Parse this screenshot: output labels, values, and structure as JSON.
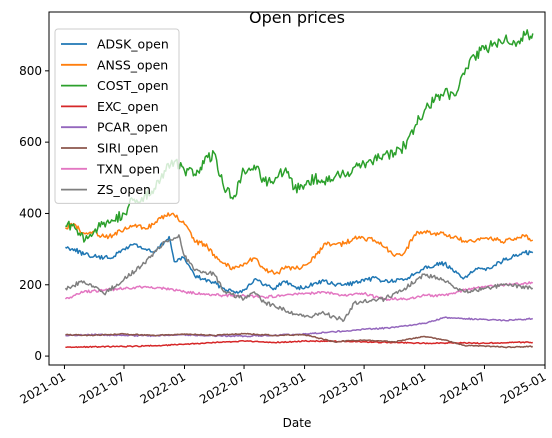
{
  "chart_data": {
    "type": "line",
    "title": "Open prices",
    "xlabel": "Date",
    "ylabel": "",
    "xlim": [
      "2020-11-15",
      "2025-01-01"
    ],
    "ylim": [
      -25,
      965
    ],
    "x_ticks": [
      "2021-01",
      "2021-07",
      "2022-01",
      "2022-07",
      "2023-01",
      "2023-07",
      "2024-01",
      "2024-07",
      "2025-01"
    ],
    "y_ticks": [
      0,
      200,
      400,
      600,
      800
    ],
    "grid": false,
    "legend_position": "top-left",
    "series": [
      {
        "name": "ADSK_open",
        "color": "#1f77b4",
        "points": [
          [
            "2021-01-04",
            305
          ],
          [
            "2021-02-01",
            300
          ],
          [
            "2021-03-01",
            285
          ],
          [
            "2021-04-01",
            280
          ],
          [
            "2021-05-01",
            275
          ],
          [
            "2021-06-01",
            280
          ],
          [
            "2021-07-01",
            300
          ],
          [
            "2021-08-01",
            315
          ],
          [
            "2021-09-01",
            300
          ],
          [
            "2021-10-01",
            290
          ],
          [
            "2021-11-01",
            320
          ],
          [
            "2021-11-15",
            335
          ],
          [
            "2021-12-01",
            265
          ],
          [
            "2022-01-01",
            275
          ],
          [
            "2022-02-01",
            225
          ],
          [
            "2022-03-01",
            215
          ],
          [
            "2022-04-01",
            205
          ],
          [
            "2022-05-01",
            190
          ],
          [
            "2022-06-01",
            180
          ],
          [
            "2022-07-01",
            185
          ],
          [
            "2022-08-01",
            215
          ],
          [
            "2022-09-01",
            200
          ],
          [
            "2022-10-01",
            190
          ],
          [
            "2022-11-01",
            210
          ],
          [
            "2022-12-01",
            195
          ],
          [
            "2023-01-01",
            190
          ],
          [
            "2023-02-01",
            205
          ],
          [
            "2023-03-01",
            210
          ],
          [
            "2023-04-01",
            200
          ],
          [
            "2023-05-01",
            200
          ],
          [
            "2023-06-01",
            205
          ],
          [
            "2023-07-01",
            210
          ],
          [
            "2023-08-01",
            220
          ],
          [
            "2023-09-01",
            210
          ],
          [
            "2023-10-01",
            210
          ],
          [
            "2023-11-01",
            215
          ],
          [
            "2023-12-01",
            230
          ],
          [
            "2024-01-01",
            250
          ],
          [
            "2024-02-01",
            255
          ],
          [
            "2024-03-01",
            260
          ],
          [
            "2024-04-01",
            235
          ],
          [
            "2024-05-01",
            220
          ],
          [
            "2024-06-01",
            240
          ],
          [
            "2024-07-01",
            245
          ],
          [
            "2024-08-01",
            255
          ],
          [
            "2024-09-01",
            270
          ],
          [
            "2024-10-01",
            280
          ],
          [
            "2024-11-01",
            290
          ],
          [
            "2024-11-25",
            290
          ]
        ]
      },
      {
        "name": "ANSS_open",
        "color": "#ff7f0e",
        "points": [
          [
            "2021-01-04",
            360
          ],
          [
            "2021-02-01",
            370
          ],
          [
            "2021-03-01",
            345
          ],
          [
            "2021-04-01",
            350
          ],
          [
            "2021-05-01",
            335
          ],
          [
            "2021-06-01",
            340
          ],
          [
            "2021-07-01",
            355
          ],
          [
            "2021-08-01",
            365
          ],
          [
            "2021-09-01",
            360
          ],
          [
            "2021-10-01",
            370
          ],
          [
            "2021-11-01",
            395
          ],
          [
            "2021-12-01",
            395
          ],
          [
            "2022-01-01",
            370
          ],
          [
            "2022-02-01",
            320
          ],
          [
            "2022-03-01",
            315
          ],
          [
            "2022-04-01",
            285
          ],
          [
            "2022-05-01",
            260
          ],
          [
            "2022-06-01",
            245
          ],
          [
            "2022-07-01",
            260
          ],
          [
            "2022-08-01",
            275
          ],
          [
            "2022-09-01",
            245
          ],
          [
            "2022-10-01",
            230
          ],
          [
            "2022-11-01",
            245
          ],
          [
            "2022-12-01",
            245
          ],
          [
            "2023-01-01",
            255
          ],
          [
            "2023-02-01",
            275
          ],
          [
            "2023-03-01",
            315
          ],
          [
            "2023-04-01",
            315
          ],
          [
            "2023-05-01",
            315
          ],
          [
            "2023-06-01",
            330
          ],
          [
            "2023-07-01",
            330
          ],
          [
            "2023-08-01",
            325
          ],
          [
            "2023-09-01",
            305
          ],
          [
            "2023-10-01",
            280
          ],
          [
            "2023-11-01",
            290
          ],
          [
            "2023-12-01",
            340
          ],
          [
            "2024-01-01",
            350
          ],
          [
            "2024-02-01",
            345
          ],
          [
            "2024-03-01",
            340
          ],
          [
            "2024-04-01",
            335
          ],
          [
            "2024-05-01",
            320
          ],
          [
            "2024-06-01",
            320
          ],
          [
            "2024-07-01",
            330
          ],
          [
            "2024-08-01",
            330
          ],
          [
            "2024-09-01",
            320
          ],
          [
            "2024-10-01",
            330
          ],
          [
            "2024-11-01",
            335
          ],
          [
            "2024-11-25",
            325
          ]
        ]
      },
      {
        "name": "COST_open",
        "color": "#2ca02c",
        "points": [
          [
            "2021-01-04",
            365
          ],
          [
            "2021-02-01",
            360
          ],
          [
            "2021-03-01",
            320
          ],
          [
            "2021-04-01",
            350
          ],
          [
            "2021-05-01",
            375
          ],
          [
            "2021-06-01",
            380
          ],
          [
            "2021-07-01",
            400
          ],
          [
            "2021-08-01",
            440
          ],
          [
            "2021-09-01",
            450
          ],
          [
            "2021-10-01",
            470
          ],
          [
            "2021-11-01",
            520
          ],
          [
            "2021-12-01",
            545
          ],
          [
            "2022-01-01",
            520
          ],
          [
            "2022-02-01",
            510
          ],
          [
            "2022-03-01",
            540
          ],
          [
            "2022-04-01",
            570
          ],
          [
            "2022-05-01",
            470
          ],
          [
            "2022-06-01",
            450
          ],
          [
            "2022-07-01",
            520
          ],
          [
            "2022-08-01",
            535
          ],
          [
            "2022-09-01",
            490
          ],
          [
            "2022-10-01",
            490
          ],
          [
            "2022-11-01",
            520
          ],
          [
            "2022-12-01",
            470
          ],
          [
            "2023-01-01",
            480
          ],
          [
            "2023-02-01",
            500
          ],
          [
            "2023-03-01",
            490
          ],
          [
            "2023-04-01",
            500
          ],
          [
            "2023-05-01",
            510
          ],
          [
            "2023-06-01",
            530
          ],
          [
            "2023-07-01",
            540
          ],
          [
            "2023-08-01",
            555
          ],
          [
            "2023-09-01",
            565
          ],
          [
            "2023-10-01",
            570
          ],
          [
            "2023-11-01",
            590
          ],
          [
            "2023-12-01",
            640
          ],
          [
            "2024-01-01",
            690
          ],
          [
            "2024-02-01",
            720
          ],
          [
            "2024-03-01",
            740
          ],
          [
            "2024-04-01",
            730
          ],
          [
            "2024-05-01",
            790
          ],
          [
            "2024-06-01",
            840
          ],
          [
            "2024-07-01",
            860
          ],
          [
            "2024-08-01",
            880
          ],
          [
            "2024-09-01",
            890
          ],
          [
            "2024-10-01",
            880
          ],
          [
            "2024-11-01",
            900
          ],
          [
            "2024-11-25",
            905
          ]
        ]
      },
      {
        "name": "EXC_open",
        "color": "#d62728",
        "points": [
          [
            "2021-01-04",
            25
          ],
          [
            "2021-04-01",
            26
          ],
          [
            "2021-07-01",
            27
          ],
          [
            "2021-10-01",
            29
          ],
          [
            "2022-01-01",
            33
          ],
          [
            "2022-04-01",
            38
          ],
          [
            "2022-07-01",
            42
          ],
          [
            "2022-10-01",
            38
          ],
          [
            "2023-01-01",
            42
          ],
          [
            "2023-04-01",
            42
          ],
          [
            "2023-07-01",
            40
          ],
          [
            "2023-10-01",
            38
          ],
          [
            "2024-01-01",
            36
          ],
          [
            "2024-04-01",
            37
          ],
          [
            "2024-07-01",
            36
          ],
          [
            "2024-10-01",
            39
          ],
          [
            "2024-11-25",
            38
          ]
        ]
      },
      {
        "name": "PCAR_open",
        "color": "#9467bd",
        "points": [
          [
            "2021-01-04",
            58
          ],
          [
            "2021-04-01",
            60
          ],
          [
            "2021-07-01",
            58
          ],
          [
            "2021-10-01",
            57
          ],
          [
            "2022-01-01",
            60
          ],
          [
            "2022-04-01",
            57
          ],
          [
            "2022-07-01",
            56
          ],
          [
            "2022-10-01",
            58
          ],
          [
            "2023-01-01",
            62
          ],
          [
            "2023-04-01",
            68
          ],
          [
            "2023-07-01",
            75
          ],
          [
            "2023-10-01",
            80
          ],
          [
            "2024-01-01",
            92
          ],
          [
            "2024-03-01",
            108
          ],
          [
            "2024-05-01",
            105
          ],
          [
            "2024-07-01",
            103
          ],
          [
            "2024-09-01",
            100
          ],
          [
            "2024-11-25",
            105
          ]
        ]
      },
      {
        "name": "SIRI_open",
        "color": "#8c564b",
        "points": [
          [
            "2021-01-04",
            60
          ],
          [
            "2021-04-01",
            58
          ],
          [
            "2021-07-01",
            62
          ],
          [
            "2021-10-01",
            58
          ],
          [
            "2022-01-01",
            62
          ],
          [
            "2022-04-01",
            58
          ],
          [
            "2022-07-01",
            63
          ],
          [
            "2022-10-01",
            58
          ],
          [
            "2023-01-01",
            60
          ],
          [
            "2023-04-01",
            40
          ],
          [
            "2023-07-01",
            45
          ],
          [
            "2023-10-01",
            40
          ],
          [
            "2024-01-01",
            55
          ],
          [
            "2024-03-01",
            45
          ],
          [
            "2024-05-01",
            30
          ],
          [
            "2024-07-01",
            28
          ],
          [
            "2024-09-01",
            25
          ],
          [
            "2024-11-25",
            27
          ]
        ]
      },
      {
        "name": "TXN_open",
        "color": "#e377c2",
        "points": [
          [
            "2021-01-04",
            160
          ],
          [
            "2021-03-01",
            180
          ],
          [
            "2021-05-01",
            185
          ],
          [
            "2021-07-01",
            190
          ],
          [
            "2021-09-01",
            195
          ],
          [
            "2021-11-01",
            190
          ],
          [
            "2022-01-01",
            180
          ],
          [
            "2022-03-01",
            175
          ],
          [
            "2022-05-01",
            170
          ],
          [
            "2022-07-01",
            170
          ],
          [
            "2022-09-01",
            165
          ],
          [
            "2022-11-01",
            170
          ],
          [
            "2023-01-01",
            175
          ],
          [
            "2023-03-01",
            180
          ],
          [
            "2023-05-01",
            170
          ],
          [
            "2023-07-01",
            175
          ],
          [
            "2023-09-01",
            160
          ],
          [
            "2023-11-01",
            160
          ],
          [
            "2024-01-01",
            170
          ],
          [
            "2024-03-01",
            170
          ],
          [
            "2024-05-01",
            185
          ],
          [
            "2024-07-01",
            195
          ],
          [
            "2024-09-01",
            200
          ],
          [
            "2024-11-25",
            205
          ]
        ]
      },
      {
        "name": "ZS_open",
        "color": "#7f7f7f",
        "points": [
          [
            "2021-01-04",
            190
          ],
          [
            "2021-03-01",
            210
          ],
          [
            "2021-05-01",
            175
          ],
          [
            "2021-07-01",
            215
          ],
          [
            "2021-09-01",
            260
          ],
          [
            "2021-11-01",
            320
          ],
          [
            "2021-12-15",
            340
          ],
          [
            "2022-01-01",
            280
          ],
          [
            "2022-02-01",
            240
          ],
          [
            "2022-04-01",
            230
          ],
          [
            "2022-05-01",
            180
          ],
          [
            "2022-07-01",
            160
          ],
          [
            "2022-08-01",
            180
          ],
          [
            "2022-09-01",
            150
          ],
          [
            "2022-11-01",
            130
          ],
          [
            "2023-01-01",
            110
          ],
          [
            "2023-03-01",
            120
          ],
          [
            "2023-05-01",
            100
          ],
          [
            "2023-06-01",
            150
          ],
          [
            "2023-07-01",
            155
          ],
          [
            "2023-09-01",
            160
          ],
          [
            "2023-11-01",
            190
          ],
          [
            "2024-01-01",
            230
          ],
          [
            "2024-03-01",
            210
          ],
          [
            "2024-05-01",
            180
          ],
          [
            "2024-07-01",
            190
          ],
          [
            "2024-09-01",
            200
          ],
          [
            "2024-11-25",
            190
          ]
        ]
      }
    ]
  }
}
